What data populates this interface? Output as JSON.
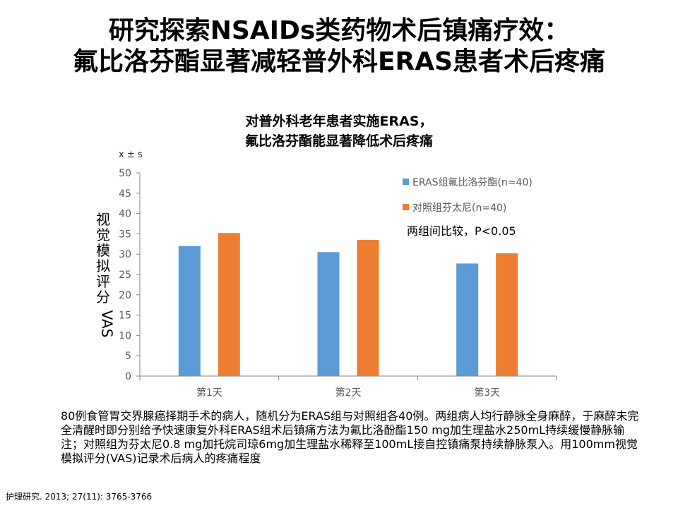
{
  "title_line1": "研究探索NSAIDs类药物术后镇痛疗效：",
  "title_line2": "氟比洛芬酯显著减轻普外科ERAS患者术后疼痛",
  "mean_sd_label": "x ± s",
  "chart_data": {
    "type": "bar",
    "title": [
      "对普外科老年患者实施ERAS，",
      "氟比洛芬酯能显著降低术后疼痛"
    ],
    "categories": [
      "第1天",
      "第2天",
      "第3天"
    ],
    "series": [
      {
        "name": "ERAS组氟比洛芬酯(n=40)",
        "color": "#5B9BD5",
        "values": [
          32,
          30.5,
          27.7
        ]
      },
      {
        "name": "对照组芬太尼(n=40)",
        "color": "#ED7D31",
        "values": [
          35.2,
          33.5,
          30.2
        ]
      }
    ],
    "ylabel": "视觉模拟评分VAS",
    "ylim": [
      0,
      50
    ],
    "yticks": [
      0,
      5,
      10,
      15,
      20,
      25,
      30,
      35,
      40,
      45,
      50
    ],
    "annotation": "两组间比较，P<0.05",
    "legend_position": "top-right",
    "grid": false
  },
  "description": "80例食管胃交界腺癌择期手术的病人，随机分为ERAS组与对照组各40例。两组病人均行静脉全身麻醉，于麻醉未完全清醒时即分别给予快速康复外科ERAS组术后镇痛方法为氟比洛酚酯150 mg加生理盐水250mL持续缓慢静脉输注；对照组为芬太尼0.8 mg加托烷司琼6mg加生理盐水稀释至100mL接自控镇痛泵持续静脉泵入。用100mm视觉模拟评分(VAS)记录术后病人的疼痛程度",
  "citation": "护理研究. 2013; 27(11): 3765-3766"
}
